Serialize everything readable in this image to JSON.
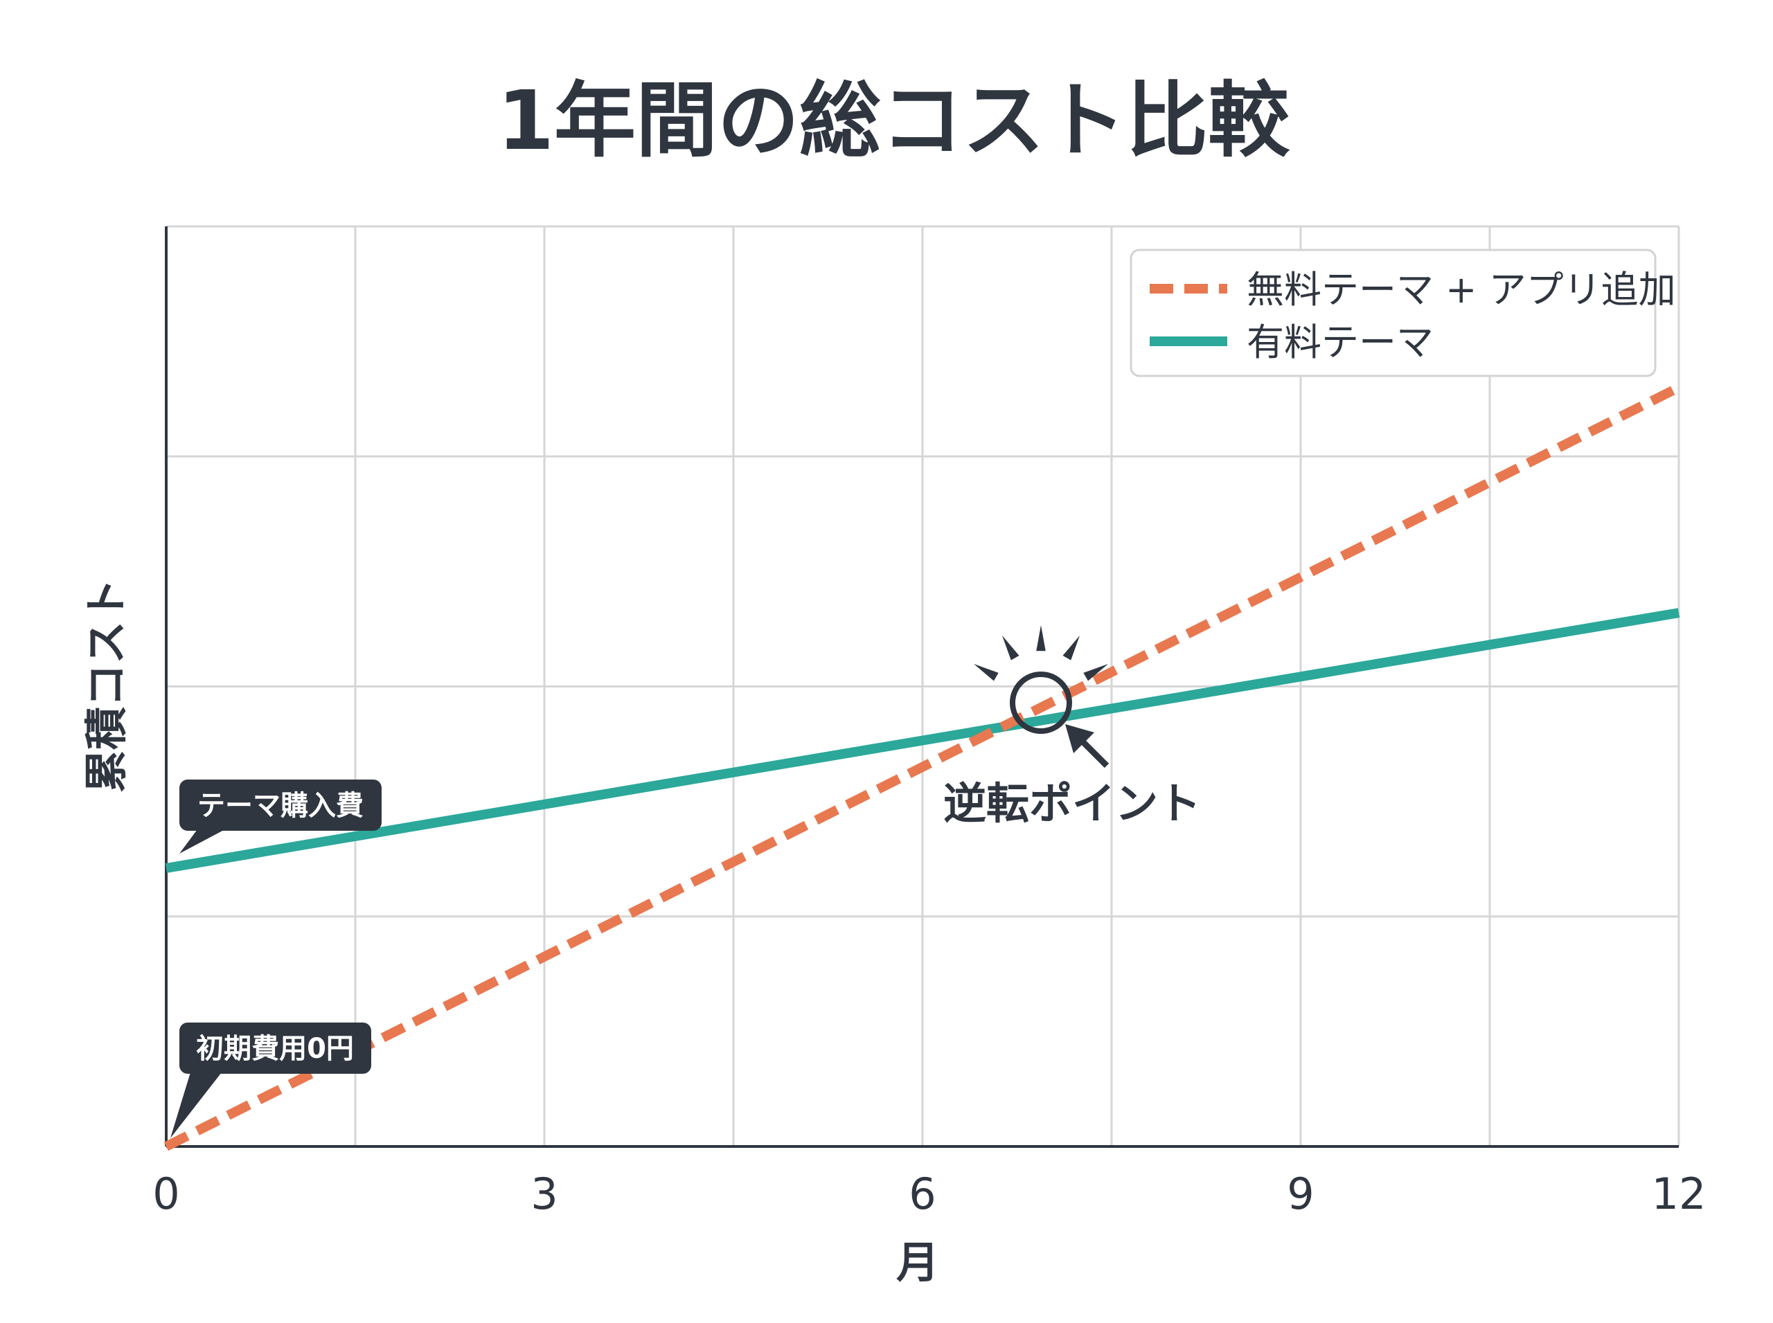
{
  "chart_data": {
    "type": "line",
    "title": "1年間の総コスト比較",
    "xlabel": "月",
    "ylabel": "累積コスト",
    "xlim": [
      0,
      12
    ],
    "ylim": [
      0,
      4
    ],
    "x_ticks": [
      "0",
      "3",
      "6",
      "9",
      "12"
    ],
    "grid": true,
    "legend_position": "top-right",
    "series": [
      {
        "name": "無料テーマ + アプリ追加",
        "style": "dashed",
        "color": "#E8784F",
        "x": [
          0,
          12
        ],
        "y": [
          0,
          3.3
        ]
      },
      {
        "name": "有料テーマ",
        "style": "solid",
        "color": "#2BA89A",
        "x": [
          0,
          12
        ],
        "y": [
          1.21,
          2.32
        ]
      }
    ],
    "annotations": [
      {
        "text": "テーマ購入費",
        "x": 0,
        "y": 1.21
      },
      {
        "text": "初期費用0円",
        "x": 0,
        "y": 0
      },
      {
        "text": "逆転ポイント",
        "x": 6.9,
        "y": 1.9
      }
    ]
  }
}
